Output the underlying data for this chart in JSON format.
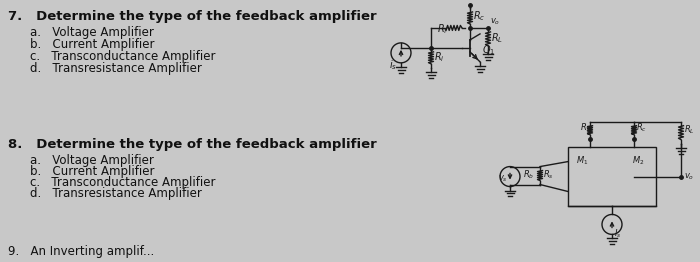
{
  "background_color": "#c8c8c8",
  "title7": "7.   Determine the type of the feedback amplifier",
  "options7": [
    "a.   Voltage Amplifier",
    "b.   Current Amplifier",
    "c.   Transconductance Amplifier",
    "d.   Transresistance Amplifier"
  ],
  "title8": "8.   Determine the type of the feedback amplifier",
  "options8": [
    "a.   Voltage Amplifier",
    "b.   Current Amplifier",
    "c.   Transconductance Amplifier",
    "d.   Transresistance Amplifier"
  ],
  "title9": "9.   An Inverting amplif...",
  "text_color": "#111111",
  "fs_title": 9.5,
  "fs_option": 8.5,
  "fs_small": 7.0
}
